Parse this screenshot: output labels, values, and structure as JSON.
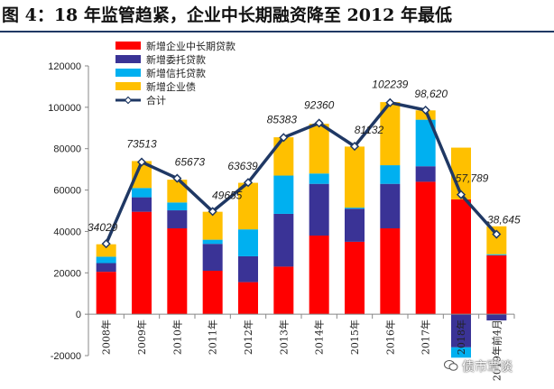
{
  "title": "图 4：18 年监管趋紧，企业中长期融资降至 2012 年最低",
  "watermark": "债市覃谈",
  "chart_data": {
    "type": "bar",
    "stacked": true,
    "categories": [
      "2008年",
      "2009年",
      "2010年",
      "2011年",
      "2012年",
      "2013年",
      "2014年",
      "2015年",
      "2016年",
      "2017年",
      "2018年",
      "2019年前4月"
    ],
    "series": [
      {
        "name": "新增企业中长期贷款",
        "color": "#ff0000",
        "values": [
          20500,
          49500,
          41500,
          21000,
          15500,
          23000,
          38000,
          35000,
          41500,
          64000,
          55500,
          28500
        ]
      },
      {
        "name": "新增委托贷款",
        "color": "#3a3396",
        "values": [
          4200,
          7000,
          8700,
          13000,
          12500,
          25500,
          25000,
          16000,
          21500,
          7500,
          -16000,
          -3000
        ]
      },
      {
        "name": "新增信托贷款",
        "color": "#00b0f0",
        "values": [
          3100,
          4500,
          3800,
          2000,
          13000,
          18500,
          5000,
          500,
          9000,
          22500,
          -5000,
          500
        ]
      },
      {
        "name": "新增企业债",
        "color": "#ffc000",
        "values": [
          6000,
          13000,
          11000,
          13500,
          22500,
          18500,
          24000,
          29500,
          30500,
          4500,
          25000,
          13500
        ]
      }
    ],
    "line": {
      "name": "合计",
      "color": "#1f3864",
      "values": [
        34029,
        73513,
        65673,
        49655,
        63639,
        85383,
        92360,
        81132,
        102239,
        98620,
        57789,
        38645
      ]
    },
    "line_labels": [
      "34029",
      "73513",
      "65673",
      "49655",
      "63639",
      "85383",
      "92360",
      "81132",
      "102239",
      "98,620",
      "57,789",
      "38,645"
    ],
    "ylim": [
      -20000,
      120000
    ],
    "yticks": [
      -20000,
      0,
      20000,
      40000,
      60000,
      80000,
      100000,
      120000
    ],
    "legend_position": "top-left",
    "grid": false
  }
}
